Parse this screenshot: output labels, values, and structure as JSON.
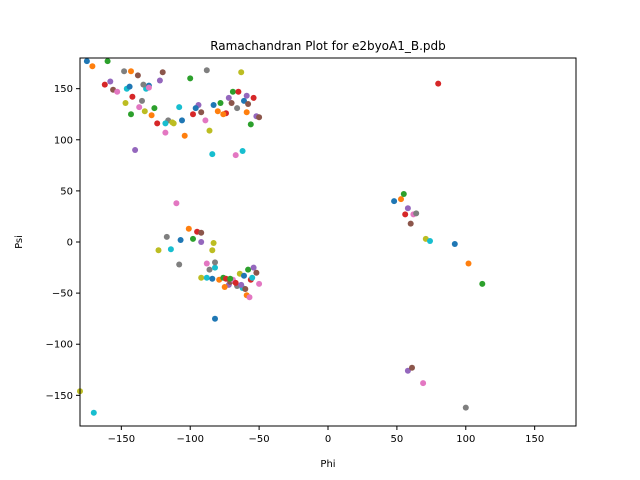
{
  "chart_data": {
    "type": "scatter",
    "title": "Ramachandran Plot for e2byoA1_B.pdb",
    "xlabel": "Phi",
    "ylabel": "Psi",
    "xlim": [
      -180,
      180
    ],
    "ylim": [
      -180,
      180
    ],
    "xticks": [
      -150,
      -100,
      -50,
      0,
      50,
      100,
      150
    ],
    "yticks": [
      -150,
      -100,
      -50,
      0,
      50,
      100,
      150
    ],
    "grid": false,
    "legend": "none",
    "palette": [
      "#1f77b4",
      "#ff7f0e",
      "#2ca02c",
      "#d62728",
      "#9467bd",
      "#8c564b",
      "#e377c2",
      "#7f7f7f",
      "#bcbd22",
      "#17becf"
    ],
    "points": [
      [
        -175,
        177
      ],
      [
        -171,
        172
      ],
      [
        -160,
        177
      ],
      [
        -162,
        154
      ],
      [
        -158,
        157
      ],
      [
        -156,
        149
      ],
      [
        -153,
        147
      ],
      [
        -148,
        167
      ],
      [
        -147,
        136
      ],
      [
        -146,
        150
      ],
      [
        -144,
        152
      ],
      [
        -143,
        167
      ],
      [
        -143,
        125
      ],
      [
        -142,
        142
      ],
      [
        -140,
        90
      ],
      [
        -138,
        163
      ],
      [
        -137,
        132
      ],
      [
        -135,
        138
      ],
      [
        -133,
        128
      ],
      [
        -132,
        150
      ],
      [
        -130,
        153
      ],
      [
        -128,
        124
      ],
      [
        -126,
        131
      ],
      [
        -124,
        116
      ],
      [
        -122,
        158
      ],
      [
        -120,
        166
      ],
      [
        -118,
        107
      ],
      [
        -116,
        119
      ],
      [
        -113,
        117
      ],
      [
        -108,
        132
      ],
      [
        -106,
        119
      ],
      [
        -104,
        104
      ],
      [
        -100,
        160
      ],
      [
        -98,
        125
      ],
      [
        -94,
        134
      ],
      [
        -92,
        127
      ],
      [
        -89,
        119
      ],
      [
        -88,
        168
      ],
      [
        -86,
        109
      ],
      [
        -84,
        86
      ],
      [
        -83,
        134
      ],
      [
        -80,
        128
      ],
      [
        -78,
        136
      ],
      [
        -74,
        126
      ],
      [
        -72,
        141
      ],
      [
        -70,
        136
      ],
      [
        -67,
        85
      ],
      [
        -66,
        131
      ],
      [
        -63,
        166
      ],
      [
        -62,
        89
      ],
      [
        -61,
        138
      ],
      [
        -59,
        127
      ],
      [
        -56,
        115
      ],
      [
        -54,
        141
      ],
      [
        -52,
        123
      ],
      [
        -50,
        122
      ],
      [
        -130,
        151
      ],
      [
        -134,
        154
      ],
      [
        -112,
        116
      ],
      [
        -118,
        116
      ],
      [
        -96,
        131
      ],
      [
        -76,
        125
      ],
      [
        -69,
        147
      ],
      [
        -65,
        147
      ],
      [
        -59,
        143
      ],
      [
        -58,
        135
      ],
      [
        -110,
        38
      ],
      [
        -117,
        5
      ],
      [
        -123,
        -8
      ],
      [
        -114,
        -7
      ],
      [
        -107,
        2
      ],
      [
        -101,
        13
      ],
      [
        -98,
        3
      ],
      [
        -95,
        10
      ],
      [
        -92,
        0
      ],
      [
        -92,
        9
      ],
      [
        -88,
        -21
      ],
      [
        -86,
        -27
      ],
      [
        -84,
        -8
      ],
      [
        -82,
        -25
      ],
      [
        -82,
        -75
      ],
      [
        -79,
        -37
      ],
      [
        -76,
        -35
      ],
      [
        -74,
        -36
      ],
      [
        -72,
        -42
      ],
      [
        -71,
        -39
      ],
      [
        -69,
        -37
      ],
      [
        -66,
        -43
      ],
      [
        -64,
        -31
      ],
      [
        -62,
        -45
      ],
      [
        -61,
        -33
      ],
      [
        -59,
        -52
      ],
      [
        -58,
        -27
      ],
      [
        -56,
        -37
      ],
      [
        -54,
        -25
      ],
      [
        -52,
        -30
      ],
      [
        -50,
        -41
      ],
      [
        -108,
        -22
      ],
      [
        -92,
        -35
      ],
      [
        -88,
        -35
      ],
      [
        -84,
        -36
      ],
      [
        -75,
        -44
      ],
      [
        -71,
        -36
      ],
      [
        -67,
        -40
      ],
      [
        -63,
        -42
      ],
      [
        -60,
        -46
      ],
      [
        -57,
        -54
      ],
      [
        -82,
        -20
      ],
      [
        -83,
        -1
      ],
      [
        -55,
        -35
      ],
      [
        48,
        40
      ],
      [
        53,
        42
      ],
      [
        55,
        47
      ],
      [
        56,
        27
      ],
      [
        58,
        33
      ],
      [
        60,
        18
      ],
      [
        62,
        27
      ],
      [
        64,
        28
      ],
      [
        71,
        3
      ],
      [
        74,
        1
      ],
      [
        92,
        -2
      ],
      [
        102,
        -21
      ],
      [
        112,
        -41
      ],
      [
        80,
        155
      ],
      [
        58,
        -126
      ],
      [
        61,
        -123
      ],
      [
        69,
        -138
      ],
      [
        100,
        -162
      ],
      [
        -180,
        -146
      ],
      [
        -170,
        -167
      ]
    ]
  }
}
